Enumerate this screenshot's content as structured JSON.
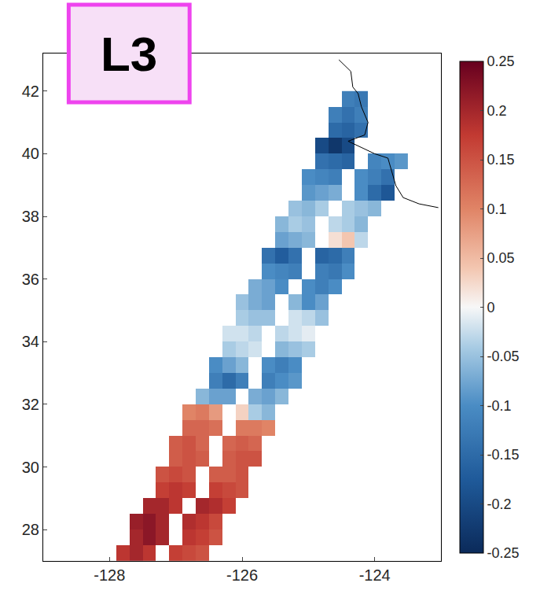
{
  "chart_data": {
    "type": "heatmap",
    "label": "L3",
    "xlim": [
      -129,
      -123.0
    ],
    "ylim": [
      27,
      43.2
    ],
    "xticks": [
      -128,
      -126,
      -124
    ],
    "yticks": [
      28,
      30,
      32,
      34,
      36,
      38,
      40,
      42
    ],
    "colorbar": {
      "range": [
        -0.25,
        0.25
      ],
      "ticks": [
        -0.25,
        -0.2,
        -0.15,
        -0.1,
        -0.05,
        0,
        0.05,
        0.1,
        0.15,
        0.2,
        0.25
      ]
    },
    "x": [
      -128.0,
      -127.8,
      -127.6,
      -127.4,
      -127.2,
      -127.0,
      -126.8,
      -126.6,
      -126.4,
      -126.2,
      -126.0,
      -125.8,
      -125.6,
      -125.4,
      -125.2,
      -125.0,
      -124.8,
      -124.6,
      -124.4,
      -124.2,
      -124.0,
      -123.8,
      -123.6
    ],
    "y": [
      27.25,
      27.75,
      28.25,
      28.75,
      29.25,
      29.75,
      30.25,
      30.75,
      31.25,
      31.75,
      32.25,
      32.75,
      33.25,
      33.75,
      34.25,
      34.75,
      35.25,
      35.75,
      36.25,
      36.75,
      37.25,
      37.75,
      38.25,
      38.75,
      39.25,
      39.75,
      40.25,
      40.75,
      41.25,
      41.75
    ],
    "z": [
      [
        null,
        0.18,
        0.2,
        0.18,
        null,
        0.17,
        0.16,
        0.15,
        null,
        null,
        null,
        null,
        null,
        null,
        null,
        null,
        null,
        null,
        null,
        null,
        null,
        null,
        null
      ],
      [
        null,
        null,
        0.2,
        0.22,
        0.2,
        null,
        0.18,
        0.17,
        0.15,
        null,
        null,
        null,
        null,
        null,
        null,
        null,
        null,
        null,
        null,
        null,
        null,
        null,
        null
      ],
      [
        null,
        null,
        0.21,
        0.22,
        0.2,
        null,
        0.19,
        0.18,
        0.16,
        null,
        null,
        null,
        null,
        null,
        null,
        null,
        null,
        null,
        null,
        null,
        null,
        null,
        null
      ],
      [
        null,
        null,
        null,
        0.2,
        0.2,
        0.18,
        null,
        0.2,
        0.19,
        0.17,
        null,
        null,
        null,
        null,
        null,
        null,
        null,
        null,
        null,
        null,
        null,
        null,
        null
      ],
      [
        null,
        null,
        null,
        null,
        0.17,
        0.18,
        0.17,
        null,
        0.17,
        0.16,
        0.15,
        null,
        null,
        null,
        null,
        null,
        null,
        null,
        null,
        null,
        null,
        null,
        null
      ],
      [
        null,
        null,
        null,
        null,
        0.15,
        0.16,
        0.15,
        null,
        0.14,
        0.14,
        0.15,
        null,
        null,
        null,
        null,
        null,
        null,
        null,
        null,
        null,
        null,
        null,
        null
      ],
      [
        null,
        null,
        null,
        null,
        null,
        0.14,
        0.15,
        0.14,
        null,
        0.14,
        0.15,
        0.15,
        null,
        null,
        null,
        null,
        null,
        null,
        null,
        null,
        null,
        null,
        null
      ],
      [
        null,
        null,
        null,
        null,
        null,
        0.14,
        0.15,
        0.13,
        null,
        0.13,
        0.14,
        0.13,
        null,
        null,
        null,
        null,
        null,
        null,
        null,
        null,
        null,
        null,
        null
      ],
      [
        null,
        null,
        null,
        null,
        null,
        null,
        0.13,
        0.13,
        0.12,
        null,
        0.11,
        0.11,
        0.1,
        null,
        null,
        null,
        null,
        null,
        null,
        null,
        null,
        null,
        null
      ],
      [
        null,
        null,
        null,
        null,
        null,
        null,
        0.1,
        0.11,
        0.08,
        null,
        0.03,
        -0.04,
        -0.06,
        null,
        null,
        null,
        null,
        null,
        null,
        null,
        null,
        null,
        null
      ],
      [
        null,
        null,
        null,
        null,
        null,
        null,
        null,
        -0.06,
        -0.08,
        -0.08,
        null,
        -0.07,
        -0.08,
        -0.06,
        null,
        null,
        null,
        null,
        null,
        null,
        null,
        null,
        null
      ],
      [
        null,
        null,
        null,
        null,
        null,
        null,
        null,
        null,
        -0.12,
        -0.15,
        -0.12,
        null,
        -0.12,
        -0.1,
        -0.09,
        null,
        null,
        null,
        null,
        null,
        null,
        null,
        null
      ],
      [
        null,
        null,
        null,
        null,
        null,
        null,
        null,
        null,
        -0.1,
        -0.08,
        -0.06,
        null,
        -0.1,
        -0.12,
        -0.1,
        null,
        null,
        null,
        null,
        null,
        null,
        null,
        null
      ],
      [
        null,
        null,
        null,
        null,
        null,
        null,
        null,
        null,
        null,
        -0.04,
        -0.03,
        -0.02,
        null,
        -0.06,
        -0.05,
        -0.04,
        null,
        null,
        null,
        null,
        null,
        null,
        null
      ],
      [
        null,
        null,
        null,
        null,
        null,
        null,
        null,
        null,
        null,
        -0.02,
        -0.02,
        -0.03,
        null,
        -0.03,
        -0.02,
        -0.01,
        null,
        null,
        null,
        null,
        null,
        null,
        null
      ],
      [
        null,
        null,
        null,
        null,
        null,
        null,
        null,
        null,
        null,
        null,
        -0.04,
        -0.05,
        -0.05,
        null,
        -0.02,
        -0.03,
        -0.05,
        null,
        null,
        null,
        null,
        null,
        null
      ],
      [
        null,
        null,
        null,
        null,
        null,
        null,
        null,
        null,
        null,
        null,
        -0.05,
        -0.07,
        -0.08,
        null,
        -0.06,
        -0.1,
        -0.08,
        null,
        null,
        null,
        null,
        null,
        null
      ],
      [
        null,
        null,
        null,
        null,
        null,
        null,
        null,
        null,
        null,
        null,
        null,
        -0.07,
        -0.08,
        -0.1,
        null,
        -0.1,
        -0.12,
        -0.1,
        null,
        null,
        null,
        null,
        null
      ],
      [
        null,
        null,
        null,
        null,
        null,
        null,
        null,
        null,
        null,
        null,
        null,
        null,
        -0.1,
        -0.11,
        -0.12,
        null,
        -0.12,
        -0.13,
        -0.1,
        null,
        null,
        null,
        null
      ],
      [
        null,
        null,
        null,
        null,
        null,
        null,
        null,
        null,
        null,
        null,
        null,
        null,
        -0.14,
        -0.17,
        -0.14,
        null,
        -0.16,
        -0.15,
        -0.12,
        null,
        null,
        null,
        null
      ],
      [
        null,
        null,
        null,
        null,
        null,
        null,
        null,
        null,
        null,
        null,
        null,
        null,
        null,
        -0.08,
        -0.07,
        -0.06,
        null,
        0.02,
        0.04,
        -0.03,
        null,
        null,
        null
      ],
      [
        null,
        null,
        null,
        null,
        null,
        null,
        null,
        null,
        null,
        null,
        null,
        null,
        null,
        -0.06,
        -0.04,
        -0.05,
        null,
        -0.03,
        -0.04,
        -0.06,
        null,
        null,
        null
      ],
      [
        null,
        null,
        null,
        null,
        null,
        null,
        null,
        null,
        null,
        null,
        null,
        null,
        null,
        null,
        -0.05,
        -0.06,
        -0.04,
        null,
        -0.04,
        -0.05,
        -0.06,
        null,
        null
      ],
      [
        null,
        null,
        null,
        null,
        null,
        null,
        null,
        null,
        null,
        null,
        null,
        null,
        null,
        null,
        null,
        -0.09,
        -0.08,
        -0.07,
        null,
        -0.1,
        -0.15,
        -0.18,
        null
      ],
      [
        null,
        null,
        null,
        null,
        null,
        null,
        null,
        null,
        null,
        null,
        null,
        null,
        null,
        null,
        null,
        -0.1,
        -0.11,
        -0.12,
        null,
        -0.1,
        -0.12,
        -0.14,
        null
      ],
      [
        null,
        null,
        null,
        null,
        null,
        null,
        null,
        null,
        null,
        null,
        null,
        null,
        null,
        null,
        null,
        null,
        -0.14,
        -0.15,
        -0.16,
        null,
        -0.11,
        -0.1,
        -0.09
      ],
      [
        null,
        null,
        null,
        null,
        null,
        null,
        null,
        null,
        null,
        null,
        null,
        null,
        null,
        null,
        null,
        null,
        -0.2,
        -0.23,
        -0.2,
        null,
        null,
        null,
        null
      ],
      [
        null,
        null,
        null,
        null,
        null,
        null,
        null,
        null,
        null,
        null,
        null,
        null,
        null,
        null,
        null,
        null,
        null,
        -0.15,
        -0.16,
        -0.14,
        null,
        null,
        null
      ],
      [
        null,
        null,
        null,
        null,
        null,
        null,
        null,
        null,
        null,
        null,
        null,
        null,
        null,
        null,
        null,
        null,
        null,
        -0.12,
        -0.14,
        -0.12,
        null,
        null,
        null
      ],
      [
        null,
        null,
        null,
        null,
        null,
        null,
        null,
        null,
        null,
        null,
        null,
        null,
        null,
        null,
        null,
        null,
        null,
        null,
        -0.12,
        -0.13,
        null,
        null,
        null
      ]
    ],
    "coastline": {
      "lon": [
        -124.54,
        -124.36,
        -124.33,
        -124.25,
        -124.2,
        -124.1,
        -124.15,
        -124.4,
        -124.0,
        -123.8,
        -123.68,
        -123.57,
        -123.33,
        -123.04
      ],
      "lat": [
        43.0,
        42.63,
        42.13,
        41.92,
        41.5,
        41.0,
        40.6,
        40.4,
        40.0,
        39.86,
        38.98,
        38.6,
        38.4,
        38.28
      ]
    }
  }
}
